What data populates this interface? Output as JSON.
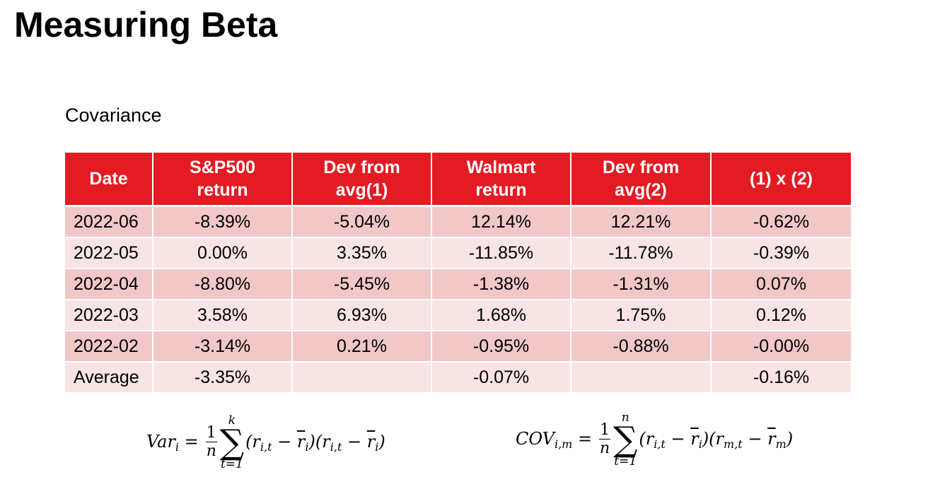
{
  "title": "Measuring Beta",
  "subtitle": "Covariance",
  "table": {
    "headers": [
      "Date",
      "S&P500 return",
      "Dev from avg(1)",
      "Walmart return",
      "Dev from avg(2)",
      "(1) x (2)"
    ],
    "rows": [
      [
        "2022-06",
        "-8.39%",
        "-5.04%",
        "12.14%",
        "12.21%",
        "-0.62%"
      ],
      [
        "2022-05",
        "0.00%",
        "3.35%",
        "-11.85%",
        "-11.78%",
        "-0.39%"
      ],
      [
        "2022-04",
        "-8.80%",
        "-5.45%",
        "-1.38%",
        "-1.31%",
        "0.07%"
      ],
      [
        "2022-03",
        "3.58%",
        "6.93%",
        "1.68%",
        "1.75%",
        "0.12%"
      ],
      [
        "2022-02",
        "-3.14%",
        "0.21%",
        "-0.95%",
        "-0.88%",
        "-0.00%"
      ],
      [
        "Average",
        "-3.35%",
        "",
        "-0.07%",
        "",
        "-0.16%"
      ]
    ]
  },
  "formulas": {
    "variance": {
      "lhs_name": "Var",
      "lhs_sub": "i",
      "frac_num": "1",
      "frac_den": "n",
      "sum_upper": "k",
      "sum_lower": "t=1",
      "body": "(r_{i,t} − r̄_i)(r_{i,t} − r̄_i)"
    },
    "covariance": {
      "lhs_name": "COV",
      "lhs_sub": "i,m",
      "frac_num": "1",
      "frac_den": "n",
      "sum_upper": "n",
      "sum_lower": "t=1",
      "body": "(r_{i,t} − r̄_i)(r_{m,t} − r̄_m)"
    }
  }
}
